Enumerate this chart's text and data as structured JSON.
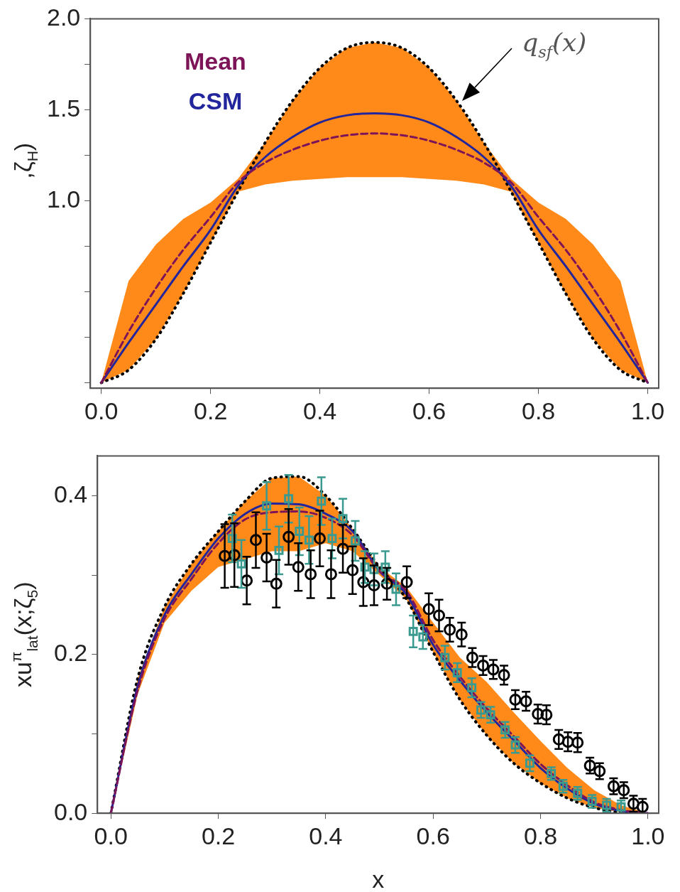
{
  "chart_data": [
    {
      "type": "line",
      "ylabel": ",ζ$_{H}$)",
      "legend": "top left",
      "marker": "none",
      "x": [
        0,
        0.05,
        0.1,
        0.15,
        0.2,
        0.25,
        0.3,
        0.35,
        0.4,
        0.45,
        0.5,
        0.55,
        0.6,
        0.65,
        0.7,
        0.75,
        0.8,
        0.85,
        0.9,
        0.95,
        1
      ],
      "series": [
        {
          "type": "line",
          "color": "#000000",
          "line_style": "dotted",
          "values": [
            0,
            0.07,
            0.24,
            0.49,
            0.77,
            1.05,
            1.32,
            1.55,
            1.73,
            1.84,
            1.87,
            1.84,
            1.73,
            1.55,
            1.32,
            1.05,
            0.77,
            0.49,
            0.24,
            0.07,
            0
          ]
        },
        {
          "type": "line",
          "name": "Mean",
          "color": "#7e1458",
          "line_style": "dashed",
          "values": [
            0,
            0.28,
            0.52,
            0.73,
            0.91,
            1.1,
            1.21,
            1.28,
            1.33,
            1.36,
            1.37,
            1.36,
            1.33,
            1.28,
            1.21,
            1.1,
            0.91,
            0.73,
            0.52,
            0.28,
            0
          ],
          "lower": [
            0,
            0.07,
            0.24,
            0.49,
            0.77,
            1.05,
            1.09,
            1.11,
            1.12,
            1.13,
            1.13,
            1.13,
            1.12,
            1.11,
            1.09,
            1.05,
            0.77,
            0.49,
            0.24,
            0.07,
            0
          ],
          "upper": [
            0,
            0.56,
            0.76,
            0.9,
            0.99,
            1.12,
            1.32,
            1.55,
            1.73,
            1.84,
            1.87,
            1.84,
            1.73,
            1.55,
            1.32,
            1.12,
            0.99,
            0.9,
            0.76,
            0.56,
            0
          ]
        },
        {
          "type": "line",
          "name": "CSM",
          "color": "#23259c",
          "line_style": "solid",
          "values": [
            0,
            0.22,
            0.43,
            0.64,
            0.84,
            1.08,
            1.24,
            1.35,
            1.43,
            1.47,
            1.48,
            1.47,
            1.43,
            1.35,
            1.24,
            1.08,
            0.84,
            0.64,
            0.43,
            0.22,
            0
          ]
        }
      ],
      "annotations": [
        {
          "text": "q$_{sf}$(x)",
          "x": 0.66,
          "y": 1.55
        }
      ],
      "xlim": [
        -0.02,
        1.02
      ],
      "xticks": [
        {
          "value": 0,
          "label": "0.0"
        },
        {
          "value": 0.2,
          "label": "0.2"
        },
        {
          "value": 0.4,
          "label": "0.4"
        },
        {
          "value": 0.6,
          "label": "0.6"
        },
        {
          "value": 0.8,
          "label": "0.8"
        },
        {
          "value": 1,
          "label": "1.0"
        }
      ],
      "ylim": [
        -0.03,
        2
      ],
      "yticks": [
        {
          "value": 0,
          "label": null
        },
        {
          "value": 0.25,
          "label": null
        },
        {
          "value": 0.5,
          "label": null
        },
        {
          "value": 0.75,
          "label": null
        },
        {
          "value": 1,
          "label": "1.0"
        },
        {
          "value": 1.25,
          "label": null
        },
        {
          "value": 1.5,
          "label": "1.5"
        },
        {
          "value": 1.75,
          "label": null
        },
        {
          "value": 2,
          "label": "2.0"
        }
      ]
    },
    {
      "type": "line",
      "xlabel": "x",
      "ylabel": "xu$^{π}$$_{lat}$(x;ζ$_{5}$)",
      "x": [
        0,
        0.05,
        0.1,
        0.15,
        0.2,
        0.25,
        0.3,
        0.35,
        0.4,
        0.45,
        0.5,
        0.55,
        0.6,
        0.65,
        0.7,
        0.75,
        0.8,
        0.85,
        0.9,
        0.95,
        1
      ],
      "series": [
        {
          "type": "line",
          "color": "#000000",
          "line_style": "dotted",
          "marker": "none",
          "values": [
            0,
            0.17,
            0.26,
            0.314,
            0.355,
            0.393,
            0.422,
            0.424,
            0.4,
            0.358,
            0.31,
            0.27,
            0.203,
            0.143,
            0.098,
            0.063,
            0.038,
            0.019,
            0.007,
            0.001,
            0
          ]
        },
        {
          "type": "line",
          "color": "#7e1458",
          "line_style": "dashed",
          "marker": "none",
          "values": [
            0,
            0.155,
            0.245,
            0.295,
            0.34,
            0.37,
            0.379,
            0.38,
            0.372,
            0.35,
            0.305,
            0.28,
            0.218,
            0.172,
            0.132,
            0.097,
            0.062,
            0.035,
            0.014,
            0.004,
            0
          ],
          "lower": [
            0,
            0.15,
            0.24,
            0.28,
            0.31,
            0.32,
            0.33,
            0.33,
            0.34,
            0.33,
            0.3,
            0.27,
            0.203,
            0.143,
            0.098,
            0.063,
            0.038,
            0.019,
            0.007,
            0.001,
            0
          ],
          "upper": [
            0,
            0.17,
            0.26,
            0.314,
            0.355,
            0.393,
            0.422,
            0.424,
            0.4,
            0.358,
            0.31,
            0.285,
            0.24,
            0.196,
            0.165,
            0.127,
            0.091,
            0.057,
            0.029,
            0.01,
            0
          ]
        },
        {
          "type": "line",
          "color": "#23259c",
          "line_style": "solid",
          "marker": "none",
          "values": [
            0,
            0.16,
            0.25,
            0.301,
            0.346,
            0.377,
            0.39,
            0.389,
            0.377,
            0.355,
            0.305,
            0.276,
            0.212,
            0.167,
            0.127,
            0.092,
            0.057,
            0.031,
            0.012,
            0.003,
            0
          ]
        },
        {
          "type": "scatter",
          "color": "#3a9a90",
          "marker": "square",
          "x": [
            0.226,
            0.243,
            0.29,
            0.313,
            0.331,
            0.351,
            0.369,
            0.392,
            0.412,
            0.432,
            0.455,
            0.473,
            0.49,
            0.511,
            0.531,
            0.563,
            0.581,
            0.622,
            0.645,
            0.672,
            0.689,
            0.707,
            0.734,
            0.753,
            0.78,
            0.82,
            0.842,
            0.869,
            0.896,
            0.923,
            0.95
          ],
          "values": [
            0.346,
            0.314,
            0.387,
            0.331,
            0.396,
            0.355,
            0.344,
            0.393,
            0.346,
            0.371,
            0.343,
            0.31,
            0.307,
            0.31,
            0.282,
            0.229,
            0.222,
            0.196,
            0.177,
            0.158,
            0.13,
            0.124,
            0.105,
            0.086,
            0.063,
            0.05,
            0.034,
            0.025,
            0.015,
            0.01,
            0.008
          ],
          "errors": [
            0.03,
            0.03,
            0.03,
            0.03,
            0.03,
            0.03,
            0.03,
            0.03,
            0.025,
            0.025,
            0.025,
            0.02,
            0.02,
            0.02,
            0.02,
            0.02,
            0.015,
            0.015,
            0.012,
            0.012,
            0.01,
            0.01,
            0.01,
            0.01,
            0.01,
            0.008,
            0.008,
            0.008,
            0.008,
            0.008,
            0.008
          ]
        },
        {
          "type": "scatter",
          "color": "#000000",
          "marker": "circle",
          "x": [
            0.212,
            0.23,
            0.253,
            0.27,
            0.29,
            0.308,
            0.331,
            0.349,
            0.372,
            0.389,
            0.41,
            0.432,
            0.45,
            0.47,
            0.49,
            0.514,
            0.551,
            0.592,
            0.611,
            0.631,
            0.653,
            0.673,
            0.693,
            0.712,
            0.732,
            0.753,
            0.773,
            0.795,
            0.811,
            0.834,
            0.851,
            0.869,
            0.892,
            0.91,
            0.936,
            0.955,
            0.973,
            0.99
          ],
          "values": [
            0.324,
            0.325,
            0.293,
            0.344,
            0.322,
            0.289,
            0.348,
            0.31,
            0.301,
            0.346,
            0.301,
            0.333,
            0.306,
            0.291,
            0.287,
            0.289,
            0.291,
            0.257,
            0.249,
            0.231,
            0.225,
            0.196,
            0.186,
            0.181,
            0.174,
            0.143,
            0.141,
            0.125,
            0.124,
            0.093,
            0.09,
            0.089,
            0.06,
            0.053,
            0.034,
            0.029,
            0.012,
            0.008
          ],
          "errors": [
            0.04,
            0.04,
            0.03,
            0.035,
            0.03,
            0.03,
            0.035,
            0.03,
            0.03,
            0.035,
            0.03,
            0.03,
            0.03,
            0.03,
            0.025,
            0.02,
            0.02,
            0.02,
            0.02,
            0.015,
            0.015,
            0.012,
            0.012,
            0.012,
            0.012,
            0.012,
            0.012,
            0.012,
            0.012,
            0.012,
            0.012,
            0.012,
            0.01,
            0.01,
            0.01,
            0.01,
            0.01,
            0.01
          ]
        }
      ],
      "xlim": [
        -0.025,
        1.02
      ],
      "xticks": [
        {
          "value": 0,
          "label": "0.0"
        },
        {
          "value": 0.2,
          "label": "0.2"
        },
        {
          "value": 0.4,
          "label": "0.4"
        },
        {
          "value": 0.6,
          "label": "0.6"
        },
        {
          "value": 0.8,
          "label": "0.8"
        },
        {
          "value": 1,
          "label": "1.0"
        }
      ],
      "ylim": [
        0,
        0.45
      ],
      "yticks": [
        {
          "value": 0,
          "label": "0.0"
        },
        {
          "value": 0.1,
          "label": null
        },
        {
          "value": 0.2,
          "label": "0.2"
        },
        {
          "value": 0.3,
          "label": null
        },
        {
          "value": 0.4,
          "label": "0.4"
        }
      ]
    }
  ]
}
